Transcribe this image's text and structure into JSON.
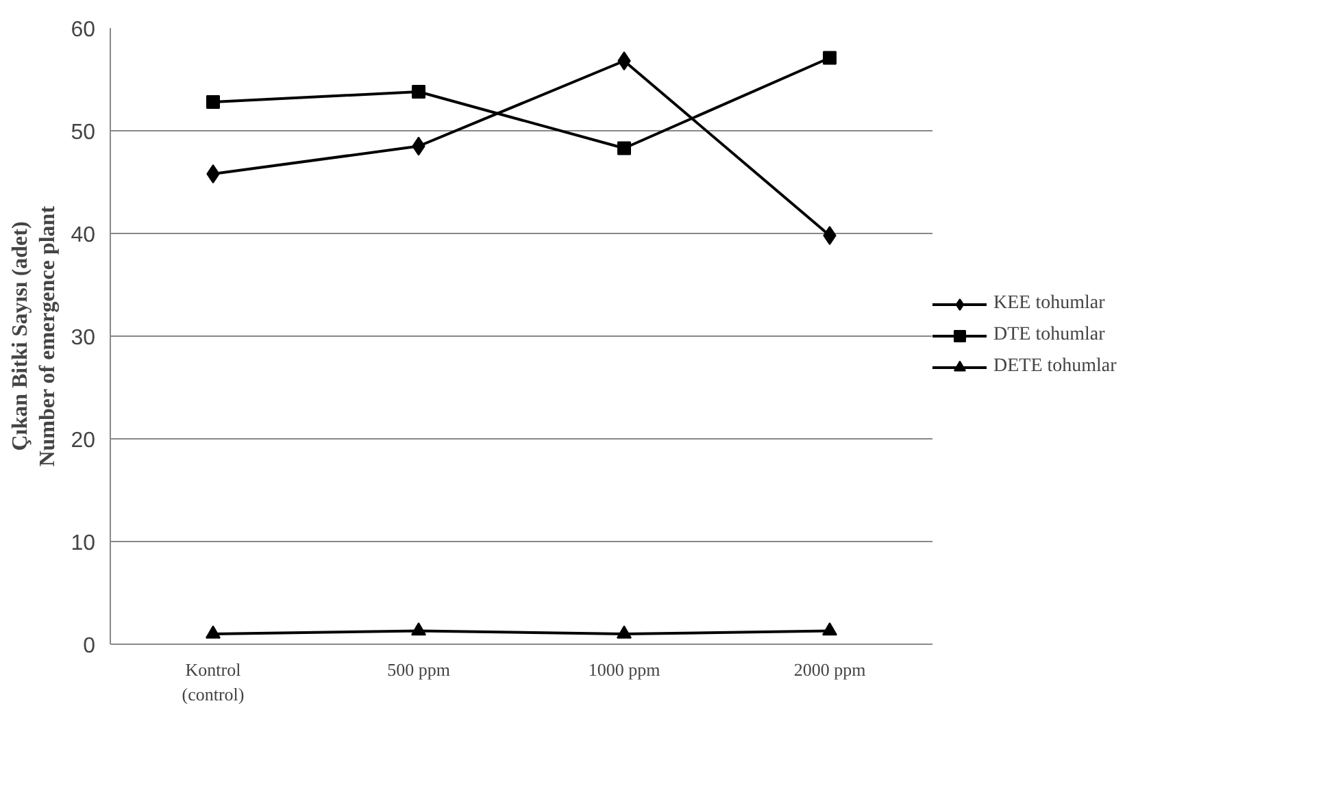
{
  "chart_data": {
    "type": "line",
    "ylabel": "Çıkan Bitki Sayısı (adet)\nNumber of emergence plant",
    "categories": [
      "Kontrol\n(control)",
      "500 ppm",
      "1000 ppm",
      "2000 ppm"
    ],
    "series": [
      {
        "name": "KEE tohumlar",
        "color": "#000000",
        "marker": "diamond",
        "values": [
          45.8,
          48.5,
          56.8,
          39.8
        ]
      },
      {
        "name": "DTE tohumlar",
        "color": "#000000",
        "marker": "square",
        "values": [
          52.8,
          53.8,
          48.3,
          57.1
        ]
      },
      {
        "name": "DETE tohumlar",
        "color": "#000000",
        "marker": "triangle",
        "values": [
          1.0,
          1.3,
          1.0,
          1.3
        ]
      }
    ],
    "ylim": [
      0,
      60
    ],
    "yticks": [
      0,
      10,
      20,
      30,
      40,
      50,
      60
    ],
    "grid": "y",
    "legend": "right",
    "line_style": "solid"
  }
}
